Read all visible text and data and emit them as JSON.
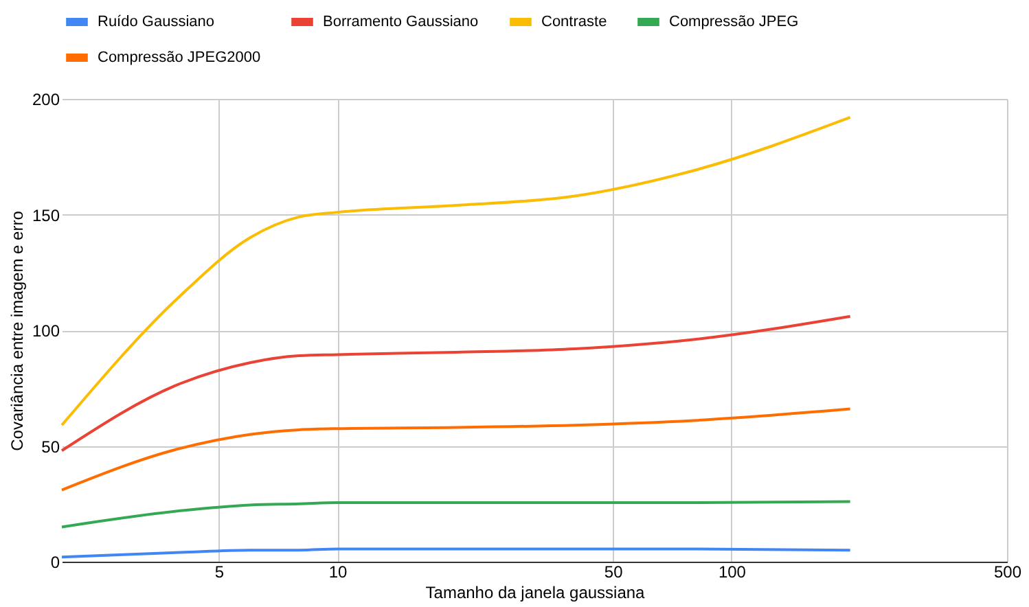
{
  "chart_data": {
    "type": "line",
    "xlabel": "Tamanho da janela gaussiana",
    "ylabel": "Covariância entre imagem e erro",
    "x": [
      2,
      4,
      6,
      8,
      10,
      20,
      40,
      80,
      200
    ],
    "series": [
      {
        "name": "Ruído Gaussiano",
        "color": "#4285f4",
        "values": [
          2,
          4,
          5,
          5,
          5.5,
          5.5,
          5.5,
          5.5,
          5
        ]
      },
      {
        "name": "Borramento Gaussiano",
        "color": "#ea4335",
        "values": [
          48,
          77,
          86,
          89,
          89.5,
          90.5,
          92,
          96,
          106
        ]
      },
      {
        "name": "Contraste",
        "color": "#fbbc04",
        "values": [
          59,
          115,
          140,
          149,
          151,
          154,
          158,
          169,
          192
        ]
      },
      {
        "name": "Compressão JPEG",
        "color": "#34a853",
        "values": [
          15,
          22,
          24.5,
          25,
          25.5,
          25.5,
          25.5,
          25.5,
          26
        ]
      },
      {
        "name": "Compressão JPEG2000",
        "color": "#ff6d01",
        "values": [
          31,
          49,
          55,
          57,
          57.5,
          58,
          59,
          61,
          66
        ]
      }
    ],
    "log": "x",
    "xlim": [
      2,
      500
    ],
    "xticks": [
      5,
      10,
      50,
      100,
      500
    ],
    "ylim": [
      0,
      200
    ],
    "yticks": [
      0,
      50,
      100,
      150,
      200
    ],
    "grid": true,
    "legend": "top",
    "marker": "none",
    "line_style": "solid"
  }
}
